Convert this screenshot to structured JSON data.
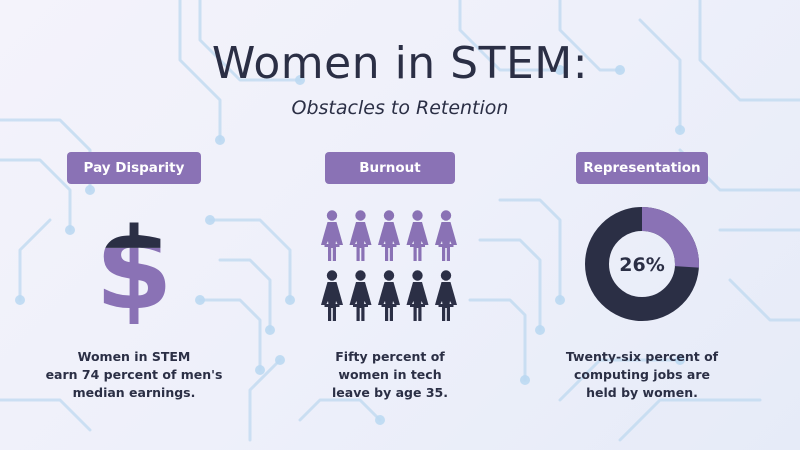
{
  "title": "Women in STEM:",
  "subtitle": "Obstacles to Retention",
  "colors": {
    "accent": "#8a72b5",
    "dark": "#2b2f45",
    "background": "#eef0fa",
    "circuit": "#bcd7ef"
  },
  "sections": {
    "pay": {
      "label": "Pay Disparity",
      "icon": "dollar-icon",
      "caption": [
        "Women in STEM",
        "earn 74 percent of men's",
        "median earnings."
      ],
      "fill_fraction": 0.74
    },
    "burnout": {
      "label": "Burnout",
      "icon": "woman-icon",
      "caption": [
        "Fifty percent of",
        "women in tech",
        "leave by age 35."
      ],
      "highlighted_count": 5,
      "total_count": 10
    },
    "representation": {
      "label": "Representation",
      "icon": "donut-chart",
      "value_text": "26%",
      "value": 26,
      "caption": [
        "Twenty-six percent of",
        "computing jobs are",
        "held by women."
      ]
    }
  }
}
